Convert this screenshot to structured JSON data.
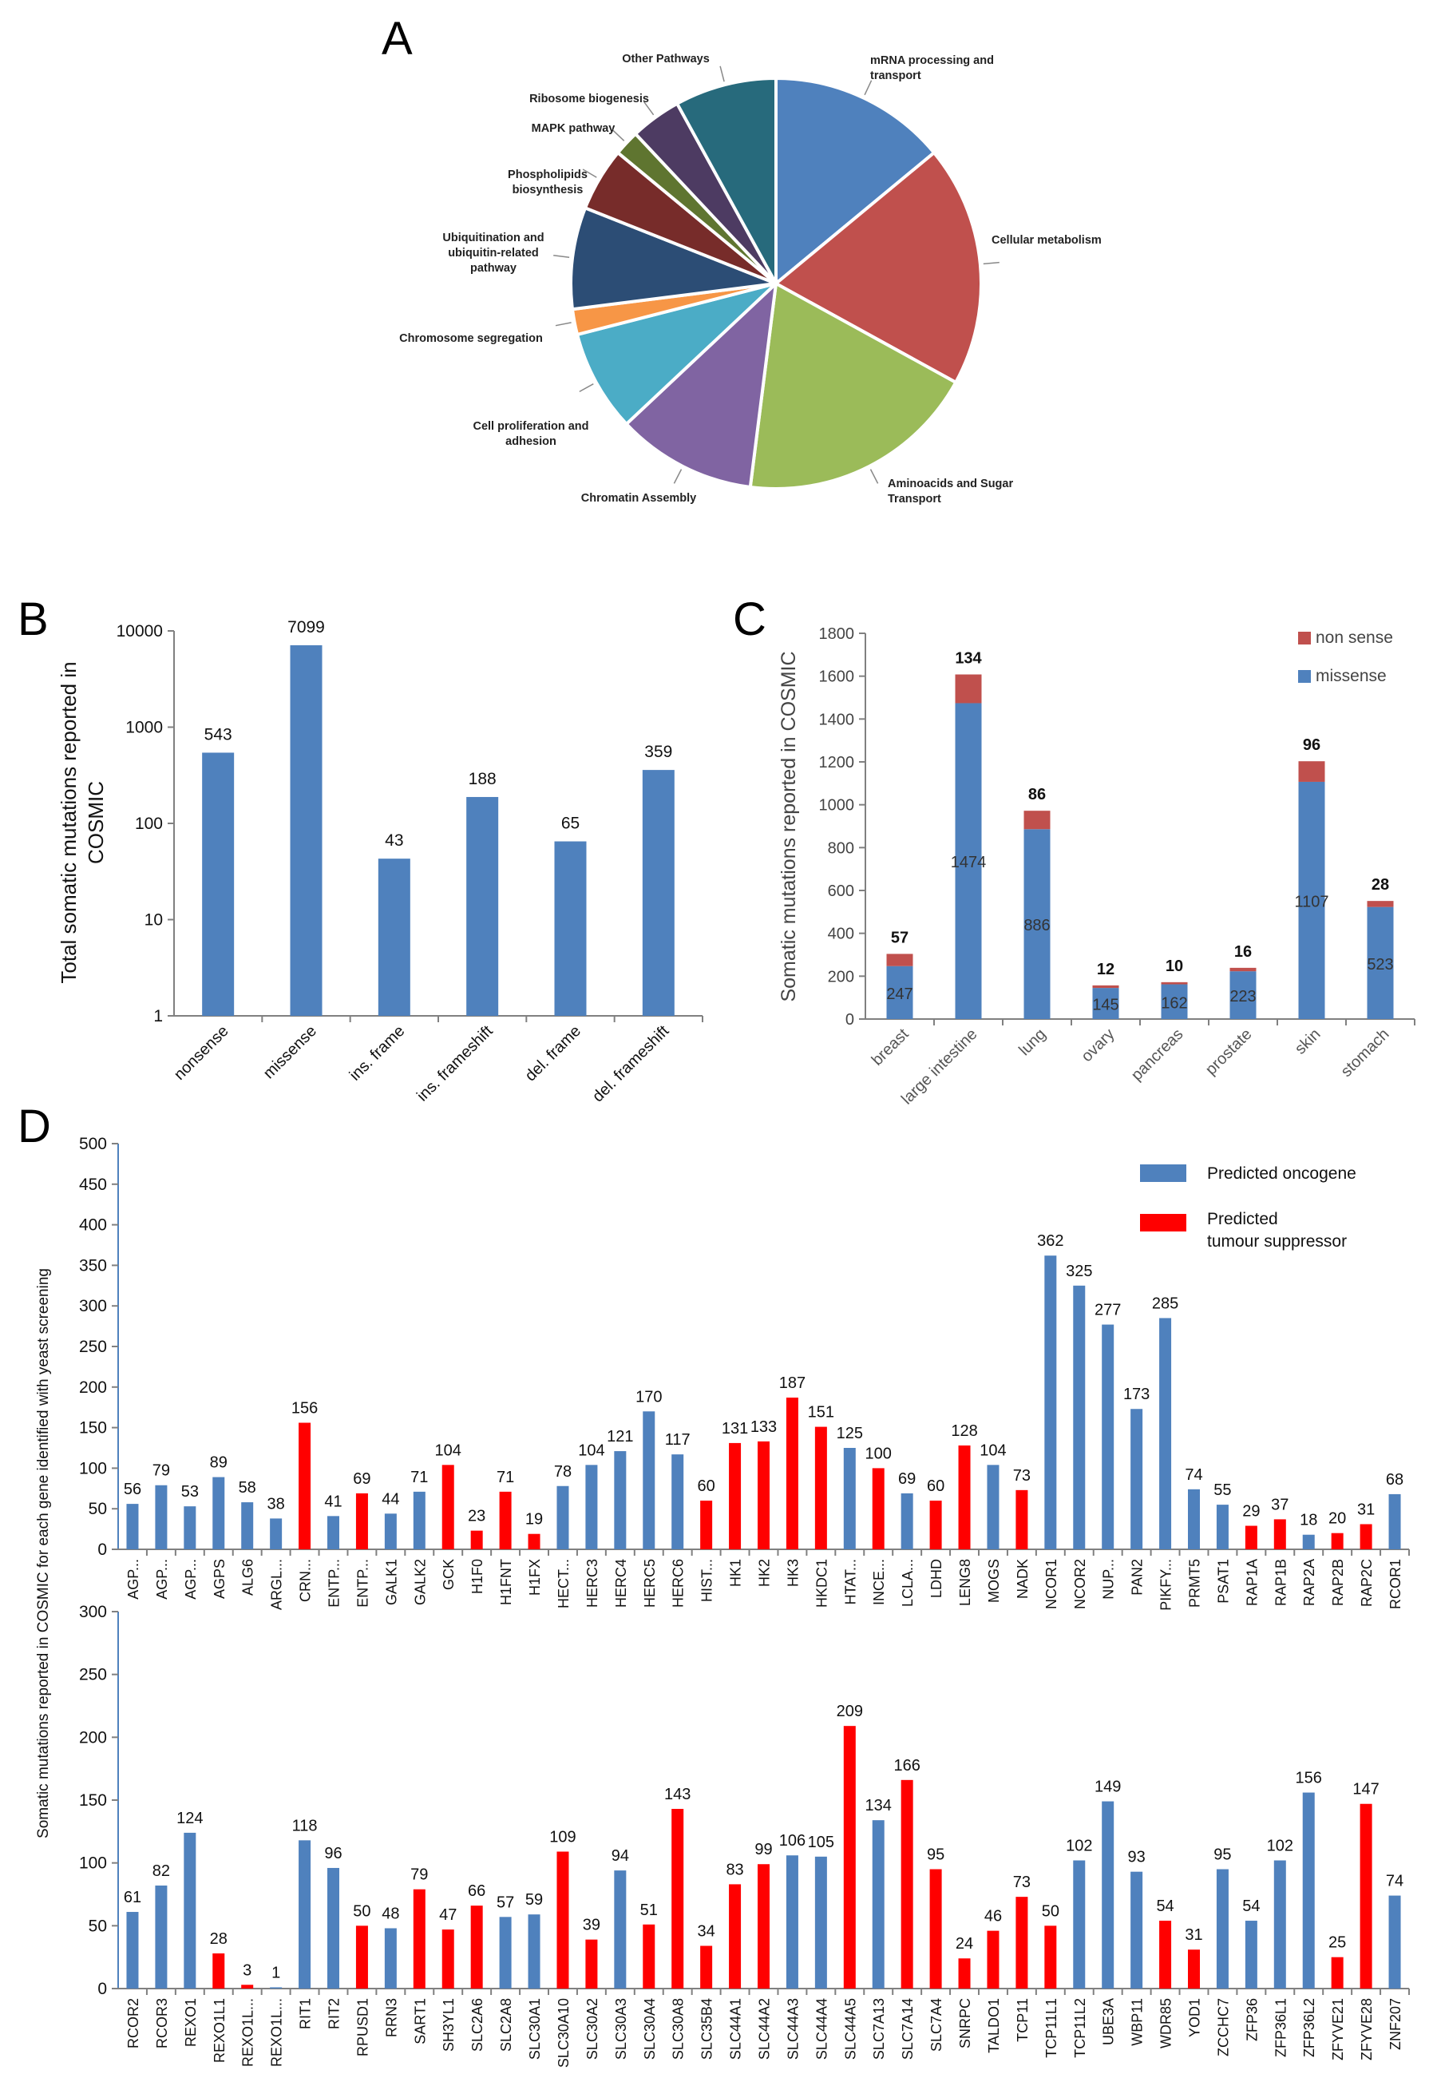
{
  "panels": {
    "A": "A",
    "B": "B",
    "C": "C",
    "D": "D"
  },
  "chart_data": [
    {
      "panel": "A",
      "type": "pie",
      "categories": [
        "mRNA processing and transport",
        "Cellular metabolism",
        "Aminoacids and Sugar Transport",
        "Chromatin Assembly",
        "Cell proliferation and adhesion",
        "Chromosome segregation",
        "Ubiquitination and ubiquitin-related pathway",
        "Phospholipids biosynthesis",
        "MAPK pathway",
        "Ribosome biogenesis",
        "Other Pathways"
      ],
      "labels_display": [
        [
          "mRNA processing and",
          "transport"
        ],
        [
          "Cellular metabolism"
        ],
        [
          "Aminoacids and Sugar",
          "Transport"
        ],
        [
          "Chromatin Assembly"
        ],
        [
          "Cell proliferation and",
          "adhesion"
        ],
        [
          "Chromosome segregation"
        ],
        [
          "Ubiquitination and",
          "ubiquitin-related",
          "pathway"
        ],
        [
          "Phospholipids",
          "biosynthesis"
        ],
        [
          "MAPK pathway"
        ],
        [
          "Ribosome biogenesis"
        ],
        [
          "Other Pathways"
        ]
      ],
      "values": [
        14,
        19,
        19,
        11,
        8,
        2,
        8,
        5,
        2,
        4,
        8
      ],
      "colors": [
        "#4F81BD",
        "#C0504D",
        "#9BBB59",
        "#8064A2",
        "#4BACC6",
        "#F79646",
        "#2C4D75",
        "#772C2A",
        "#5F7530",
        "#4D3B62",
        "#276A7C"
      ]
    },
    {
      "panel": "B",
      "type": "bar",
      "categories": [
        "nonsense",
        "missense",
        "ins. frame",
        "ins. frameshift",
        "del. frame",
        "del. frameshift"
      ],
      "values": [
        543,
        7099,
        43,
        188,
        65,
        359
      ],
      "ylabel": [
        "Total somatic mutations reported in",
        "COSMIC"
      ],
      "yscale": "log",
      "ylim": [
        1,
        10000
      ],
      "yticks": [
        "1",
        "10",
        "100",
        "1000",
        "10000"
      ],
      "color": "#4F81BD"
    },
    {
      "panel": "C",
      "type": "bar",
      "stacked": true,
      "categories": [
        "breast",
        "large intestine",
        "lung",
        "ovary",
        "pancreas",
        "prostate",
        "skin",
        "stomach"
      ],
      "series": [
        {
          "name": "missense",
          "values": [
            247,
            1474,
            886,
            145,
            162,
            223,
            1107,
            523
          ],
          "color": "#4F81BD"
        },
        {
          "name": "non sense",
          "values": [
            57,
            134,
            86,
            12,
            10,
            16,
            96,
            28
          ],
          "color": "#C0504D"
        }
      ],
      "ylabel": "Somatic mutations reported in COSMIC",
      "ylim": [
        0,
        1800
      ],
      "yticks": [
        "0",
        "200",
        "400",
        "600",
        "800",
        "1000",
        "1200",
        "1400",
        "1600",
        "1800"
      ],
      "legend": "top-right"
    },
    {
      "panel": "D",
      "type": "bar",
      "ylabel": "Somatic mutations reported in COSMIC for each gene identified with yeast screening",
      "legend": [
        {
          "name": [
            "Predicted oncogene"
          ],
          "color": "#4F81BD"
        },
        {
          "name": [
            "Predicted",
            "tumour suppressor"
          ],
          "color": "#FF0000"
        }
      ],
      "legend_placement": "top-right",
      "subcharts": [
        {
          "ylim": [
            0,
            500
          ],
          "yticks": [
            "0",
            "50",
            "100",
            "150",
            "200",
            "250",
            "300",
            "350",
            "400",
            "450",
            "500"
          ],
          "categories": [
            "AGP...",
            "AGP...",
            "AGP...",
            "AGPS",
            "ALG6",
            "ARGL...",
            "CRN...",
            "ENTP...",
            "ENTP...",
            "GALK1",
            "GALK2",
            "GCK",
            "H1F0",
            "H1FNT",
            "H1FX",
            "HECT...",
            "HERC3",
            "HERC4",
            "HERC5",
            "HERC6",
            "HIST...",
            "HK1",
            "HK2",
            "HK3",
            "HKDC1",
            "HTAT...",
            "INCE...",
            "LCLA...",
            "LDHD",
            "LENG8",
            "MOGS",
            "NADK",
            "NCOR1",
            "NCOR2",
            "NUP...",
            "PAN2",
            "PIKFY...",
            "PRMT5",
            "PSAT1",
            "RAP1A",
            "RAP1B",
            "RAP2A",
            "RAP2B",
            "RAP2C",
            "RCOR1"
          ],
          "values": [
            56,
            79,
            53,
            89,
            58,
            38,
            156,
            41,
            69,
            44,
            71,
            104,
            23,
            71,
            19,
            78,
            104,
            121,
            170,
            117,
            60,
            131,
            133,
            187,
            151,
            125,
            100,
            69,
            60,
            128,
            104,
            73,
            362,
            325,
            277,
            173,
            285,
            74,
            55,
            29,
            37,
            18,
            20,
            31,
            68
          ],
          "groups": [
            "o",
            "o",
            "o",
            "o",
            "o",
            "o",
            "s",
            "o",
            "s",
            "o",
            "o",
            "s",
            "s",
            "s",
            "s",
            "o",
            "o",
            "o",
            "o",
            "o",
            "s",
            "s",
            "s",
            "s",
            "s",
            "o",
            "s",
            "o",
            "s",
            "s",
            "o",
            "s",
            "o",
            "o",
            "o",
            "o",
            "o",
            "o",
            "o",
            "s",
            "s",
            "o",
            "s",
            "s",
            "o"
          ]
        },
        {
          "ylim": [
            0,
            300
          ],
          "yticks": [
            "0",
            "50",
            "100",
            "150",
            "200",
            "250",
            "300"
          ],
          "categories": [
            "RCOR2",
            "RCOR3",
            "REXO1",
            "REXO1L1",
            "REXO1L...",
            "REXO1L...",
            "RIT1",
            "RIT2",
            "RPUSD1",
            "RRN3",
            "SART1",
            "SH3YL1",
            "SLC2A6",
            "SLC2A8",
            "SLC30A1",
            "SLC30A10",
            "SLC30A2",
            "SLC30A3",
            "SLC30A4",
            "SLC30A8",
            "SLC35B4",
            "SLC44A1",
            "SLC44A2",
            "SLC44A3",
            "SLC44A4",
            "SLC44A5",
            "SLC7A13",
            "SLC7A14",
            "SLC7A4",
            "SNRPC",
            "TALDO1",
            "TCP11",
            "TCP11L1",
            "TCP11L2",
            "UBE3A",
            "WBP11",
            "WDR85",
            "YOD1",
            "ZCCHC7",
            "ZFP36",
            "ZFP36L1",
            "ZFP36L2",
            "ZFYVE21",
            "ZFYVE28",
            "ZNF207"
          ],
          "values": [
            61,
            82,
            124,
            28,
            3,
            1,
            118,
            96,
            50,
            48,
            79,
            47,
            66,
            57,
            59,
            109,
            39,
            94,
            51,
            143,
            34,
            83,
            99,
            106,
            105,
            209,
            134,
            166,
            95,
            24,
            46,
            73,
            50,
            102,
            149,
            93,
            54,
            31,
            95,
            54,
            102,
            156,
            25,
            147,
            74
          ],
          "groups": [
            "o",
            "o",
            "o",
            "s",
            "s",
            "o",
            "o",
            "o",
            "s",
            "o",
            "s",
            "s",
            "s",
            "o",
            "o",
            "s",
            "s",
            "o",
            "s",
            "s",
            "s",
            "s",
            "s",
            "o",
            "o",
            "s",
            "o",
            "s",
            "s",
            "s",
            "s",
            "s",
            "s",
            "o",
            "o",
            "o",
            "s",
            "s",
            "o",
            "o",
            "o",
            "o",
            "s",
            "s",
            "o"
          ]
        }
      ]
    }
  ]
}
